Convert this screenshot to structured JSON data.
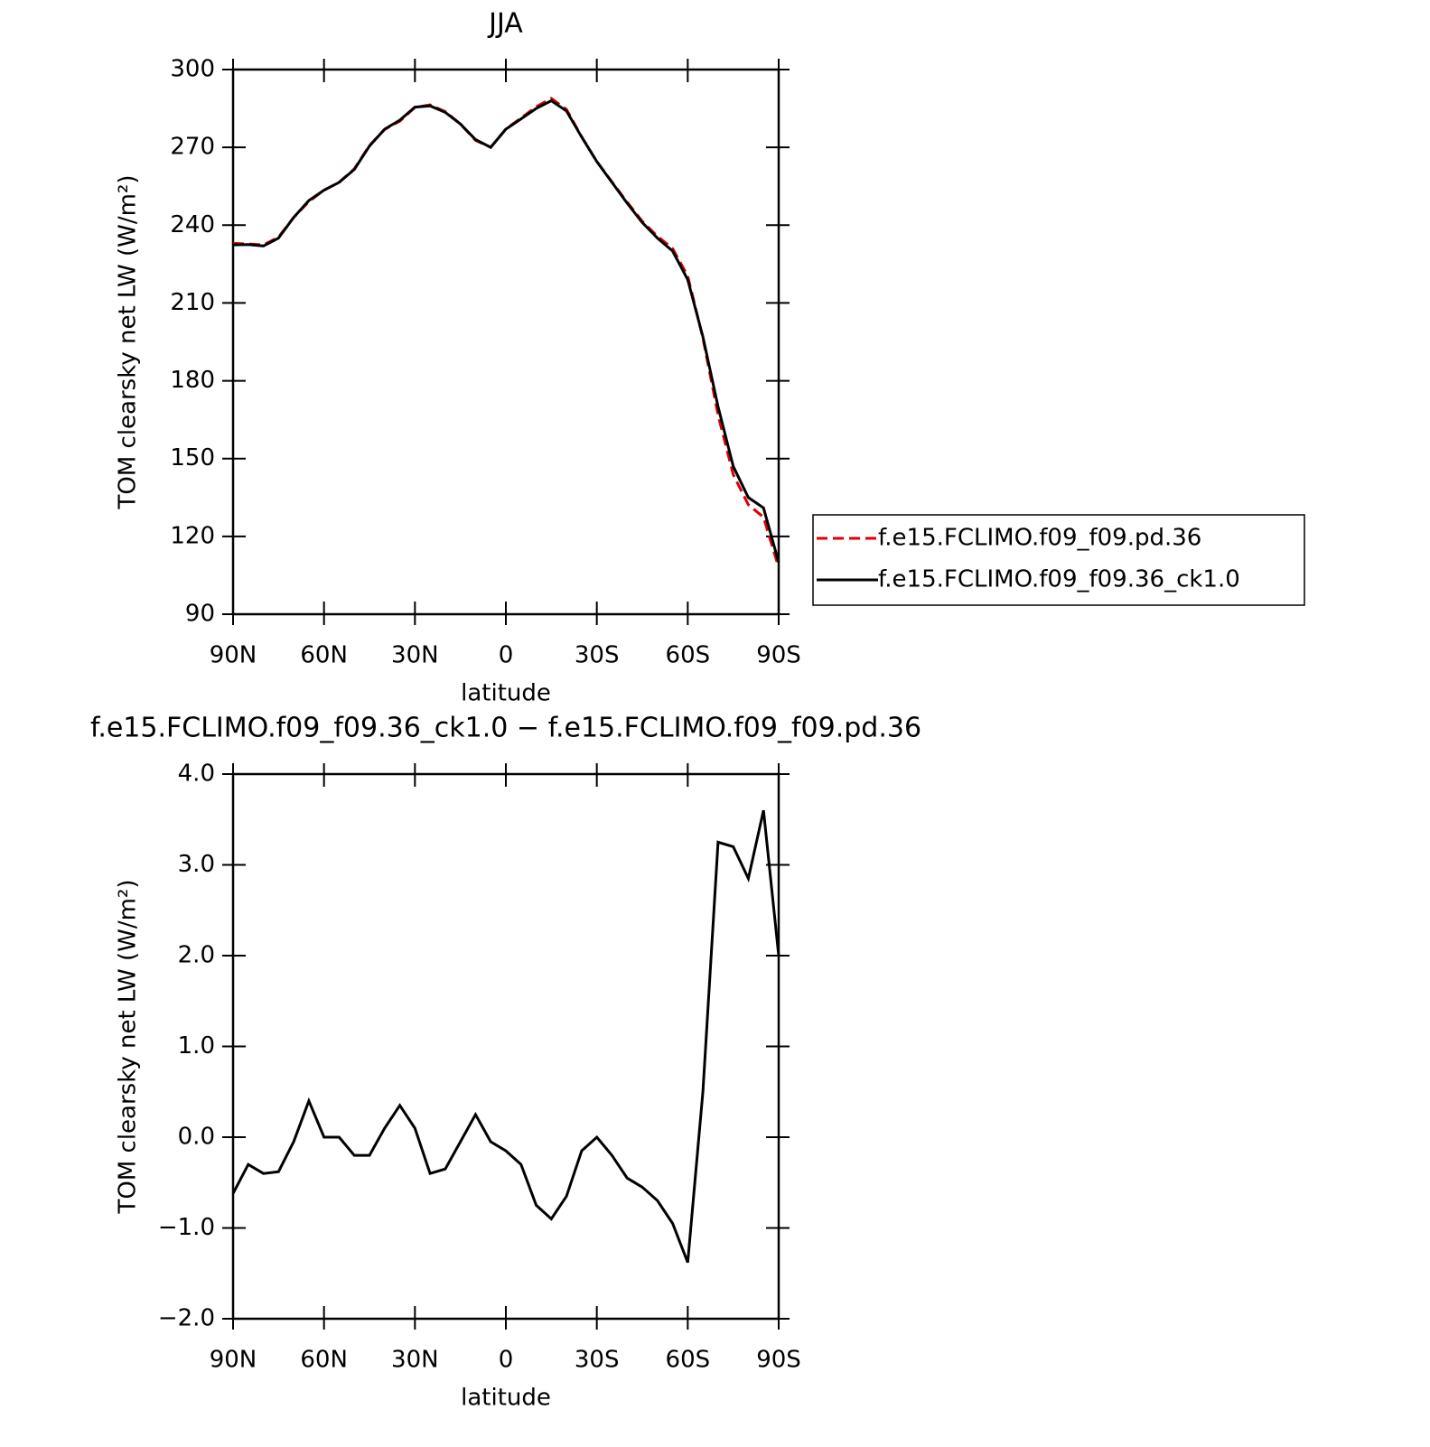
{
  "chart_data": [
    {
      "type": "line",
      "title": "JJA",
      "xlabel": "latitude",
      "ylabel": "TOM clearsky net LW (W/m²)",
      "x": [
        90,
        85,
        80,
        75,
        70,
        65,
        60,
        55,
        50,
        45,
        40,
        35,
        30,
        25,
        20,
        15,
        10,
        5,
        0,
        -5,
        -10,
        -15,
        -20,
        -25,
        -30,
        -35,
        -40,
        -45,
        -50,
        -55,
        -60,
        -65,
        -70,
        -75,
        -80,
        -85,
        -90
      ],
      "series": [
        {
          "name": "f.e15.FCLIMO.f09_f09.pd.36",
          "color": "#e00000",
          "dash": "dashed",
          "values": [
            233,
            232.8,
            232.4,
            235.4,
            243,
            249.1,
            253.5,
            256.5,
            261.7,
            270.7,
            276.9,
            280.1,
            285.4,
            286.4,
            283.8,
            279,
            272.7,
            270,
            277.1,
            281.3,
            285.7,
            288.9,
            284.6,
            274.1,
            264.5,
            256.7,
            248.9,
            241.5,
            235.7,
            231,
            220.4,
            196.5,
            166.8,
            143.8,
            132.2,
            127.4,
            108
          ]
        },
        {
          "name": "f.e15.FCLIMO.f09_f09.36_ck1.0",
          "color": "#000000",
          "dash": "solid",
          "values": [
            232.4,
            232.5,
            232,
            235,
            243,
            249.5,
            253.5,
            256.5,
            261.5,
            270.5,
            277,
            280.5,
            285.5,
            286,
            283.5,
            279,
            273,
            270,
            277,
            281,
            285,
            288,
            284,
            274,
            264.5,
            256.5,
            248.5,
            241,
            235,
            230,
            219,
            197,
            170,
            147,
            135,
            131,
            110
          ]
        }
      ],
      "xlim": [
        90,
        -90
      ],
      "xticks": [
        {
          "value": 90,
          "label": "90N"
        },
        {
          "value": 60,
          "label": "60N"
        },
        {
          "value": 30,
          "label": "30N"
        },
        0,
        {
          "value": -30,
          "label": "30S"
        },
        {
          "value": -60,
          "label": "60S"
        },
        {
          "value": -90,
          "label": "90S"
        }
      ],
      "ylim": [
        90,
        300
      ],
      "yticks": [
        90,
        120,
        150,
        180,
        210,
        240,
        270,
        300
      ]
    },
    {
      "type": "line",
      "title": "f.e15.FCLIMO.f09_f09.36_ck1.0 − f.e15.FCLIMO.f09_f09.pd.36",
      "xlabel": "latitude",
      "ylabel": "TOM clearsky net LW (W/m²)",
      "x": [
        90,
        85,
        80,
        75,
        70,
        65,
        60,
        55,
        50,
        45,
        40,
        35,
        30,
        25,
        20,
        15,
        10,
        5,
        0,
        -5,
        -10,
        -15,
        -20,
        -25,
        -30,
        -35,
        -40,
        -45,
        -50,
        -55,
        -60,
        -65,
        -70,
        -75,
        -80,
        -85,
        -90
      ],
      "values": [
        -0.62,
        -0.3,
        -0.4,
        -0.38,
        -0.05,
        0.4,
        0,
        0,
        -0.2,
        -0.2,
        0.1,
        0.35,
        0.1,
        -0.4,
        -0.35,
        -0.05,
        0.25,
        -0.05,
        -0.15,
        -0.3,
        -0.75,
        -0.9,
        -0.65,
        -0.15,
        0,
        -0.2,
        -0.45,
        -0.55,
        -0.7,
        -0.95,
        -1.38,
        0.5,
        3.25,
        3.2,
        2.85,
        3.6,
        2.0
      ],
      "color": "#000000",
      "xlim": [
        90,
        -90
      ],
      "xticks": [
        {
          "value": 90,
          "label": "90N"
        },
        {
          "value": 60,
          "label": "60N"
        },
        {
          "value": 30,
          "label": "30N"
        },
        0,
        {
          "value": -30,
          "label": "30S"
        },
        {
          "value": -60,
          "label": "60S"
        },
        {
          "value": -90,
          "label": "90S"
        }
      ],
      "ylim": [
        -2,
        4
      ],
      "yticks": [
        {
          "value": -2,
          "label": "−2.0"
        },
        {
          "value": -1,
          "label": "−1.0"
        },
        {
          "value": 0,
          "label": "0.0"
        },
        {
          "value": 1,
          "label": "1.0"
        },
        {
          "value": 2,
          "label": "2.0"
        },
        {
          "value": 3,
          "label": "3.0"
        },
        {
          "value": 4,
          "label": "4.0"
        }
      ]
    }
  ]
}
